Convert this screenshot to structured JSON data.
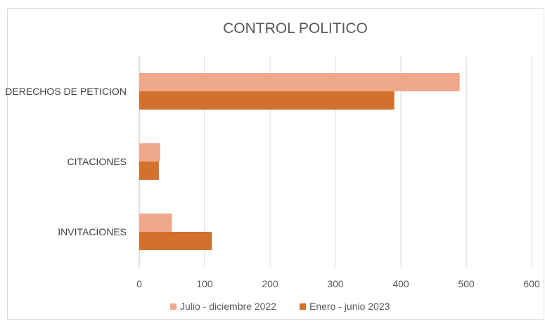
{
  "chart_data": {
    "type": "bar",
    "orientation": "horizontal",
    "title": "CONTROL POLITICO",
    "categories": [
      "DERECHOS DE PETICION",
      "CITACIONES",
      "INVITACIONES"
    ],
    "series": [
      {
        "name": "Julio - diciembre 2022",
        "values": [
          490,
          32,
          50
        ],
        "color": "#F0A88A"
      },
      {
        "name": "Enero - junio 2023",
        "values": [
          390,
          30,
          111
        ],
        "color": "#D2702D"
      }
    ],
    "xlim": [
      0,
      600
    ],
    "xticks": [
      "0",
      "100",
      "200",
      "300",
      "400",
      "500",
      "600"
    ],
    "grid": true,
    "legend_position": "bottom"
  }
}
